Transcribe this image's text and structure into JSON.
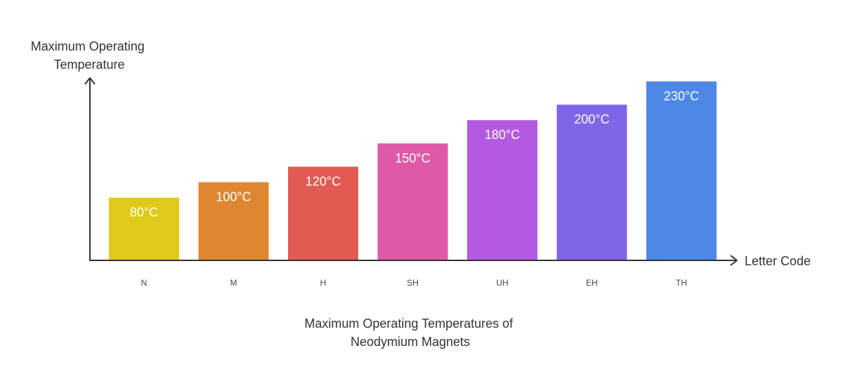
{
  "chart_data": {
    "type": "bar",
    "title": "Maximum Operating Temperatures of Neodymium Magnets",
    "title_lines": [
      "Maximum Operating Temperatures of",
      "Neodymium Magnets"
    ],
    "xlabel": "Letter Code",
    "ylabel": "Maximum Operating Temperature",
    "ylabel_lines": [
      "Maximum Operating",
      "Temperature"
    ],
    "categories": [
      "N",
      "M",
      "H",
      "SH",
      "UH",
      "EH",
      "TH"
    ],
    "values": [
      80,
      100,
      120,
      150,
      180,
      200,
      230
    ],
    "value_labels": [
      "80°C",
      "100°C",
      "120°C",
      "150°C",
      "180°C",
      "200°C",
      "230°C"
    ],
    "unit": "°C",
    "colors": [
      "#dfca1a",
      "#df8730",
      "#e35a52",
      "#de5aa8",
      "#b45ae2",
      "#7f66e6",
      "#4d88e6"
    ],
    "ylim": [
      0,
      230
    ],
    "grid": false,
    "legend": "none"
  }
}
